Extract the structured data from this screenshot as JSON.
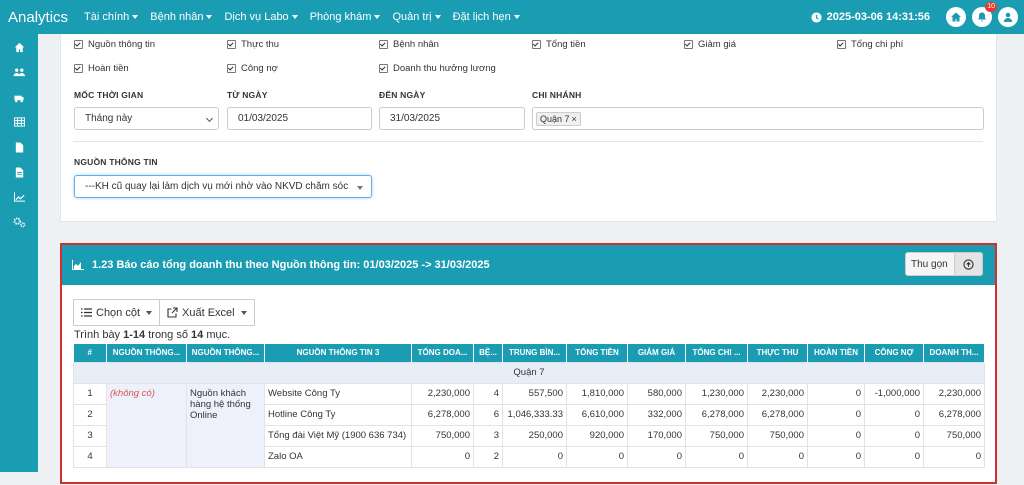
{
  "app": {
    "title": "Analytics"
  },
  "nav": {
    "items": [
      {
        "label": "Tài chính"
      },
      {
        "label": "Bệnh nhân"
      },
      {
        "label": "Dịch vụ Labo"
      },
      {
        "label": "Phòng khám"
      },
      {
        "label": "Quản trị"
      },
      {
        "label": "Đặt lịch hẹn"
      }
    ],
    "datetime": "2025-03-06 14:31:56",
    "notification_count": "10"
  },
  "sidebar": {
    "icons": [
      "home-icon",
      "users-icon",
      "labo-icon",
      "table-icon",
      "file-icon",
      "document-icon",
      "chart-icon",
      "settings-icon"
    ]
  },
  "filters": {
    "checkboxes_row1": [
      "Nguồn thông tin",
      "Thực thu",
      "Bệnh nhân",
      "Tổng tiền",
      "Giảm giá",
      "Tổng chi phí"
    ],
    "checkboxes_row2": [
      "Hoàn tiền",
      "Công nợ",
      "Doanh thu hưởng lương"
    ],
    "time_label": "MỐC THỜI GIAN",
    "time_value": "Tháng này",
    "from_label": "TỪ NGÀY",
    "from_value": "01/03/2025",
    "to_label": "ĐẾN NGÀY",
    "to_value": "31/03/2025",
    "branch_label": "CHI NHÁNH",
    "branch_tag": "Quận 7",
    "source_label": "NGUỒN THÔNG TIN",
    "source_value": "---KH cũ quay lại làm dịch vụ mới nhờ vào NKVD chăm sóc"
  },
  "report": {
    "title": "1.23 Báo cáo tổng doanh thu theo Nguồn thông tin: 01/03/2025 -> 31/03/2025",
    "collapse_label": "Thu gọn",
    "choose_columns": "Chọn cột",
    "export_excel": "Xuất Excel",
    "info_prefix": "Trình bày",
    "info_range": "1-14",
    "info_mid": "trong số",
    "info_total": "14",
    "info_suffix": "mục.",
    "columns": [
      "#",
      "NGUỒN THÔNG...",
      "NGUỒN THÔNG...",
      "NGUỒN THÔNG TIN 3",
      "TỔNG DOA...",
      "BỆ...",
      "TRUNG BÌN...",
      "TỔNG TIỀN",
      "GIẢM GIÁ",
      "TỔNG CHI ...",
      "THỰC THU",
      "HOÀN TIỀN",
      "CÔNG NỢ",
      "DOANH TH..."
    ],
    "group_label": "Quận 7",
    "source1": "(không có)",
    "source2": "Nguồn khách hàng hệ thống Online",
    "rows": [
      {
        "n": "1",
        "src3": "Website Công Ty",
        "total_rev": "2,230,000",
        "patients": "4",
        "avg": "557,500",
        "total": "1,810,000",
        "discount": "580,000",
        "cost": "1,230,000",
        "actual": "2,230,000",
        "refund": "0",
        "debt": "-1,000,000",
        "revenue": "2,230,000"
      },
      {
        "n": "2",
        "src3": "Hotline Công Ty",
        "total_rev": "6,278,000",
        "patients": "6",
        "avg": "1,046,333.33",
        "total": "6,610,000",
        "discount": "332,000",
        "cost": "6,278,000",
        "actual": "6,278,000",
        "refund": "0",
        "debt": "0",
        "revenue": "6,278,000"
      },
      {
        "n": "3",
        "src3": "Tổng đài Việt Mỹ (1900 636 734)",
        "total_rev": "750,000",
        "patients": "3",
        "avg": "250,000",
        "total": "920,000",
        "discount": "170,000",
        "cost": "750,000",
        "actual": "750,000",
        "refund": "0",
        "debt": "0",
        "revenue": "750,000"
      },
      {
        "n": "4",
        "src3": "Zalo OA",
        "total_rev": "0",
        "patients": "2",
        "avg": "0",
        "total": "0",
        "discount": "0",
        "cost": "0",
        "actual": "0",
        "refund": "0",
        "debt": "0",
        "revenue": "0"
      }
    ]
  },
  "colors": {
    "primary": "#1a9db3",
    "highlight_border": "#d32f2f",
    "badge": "#e53935"
  }
}
